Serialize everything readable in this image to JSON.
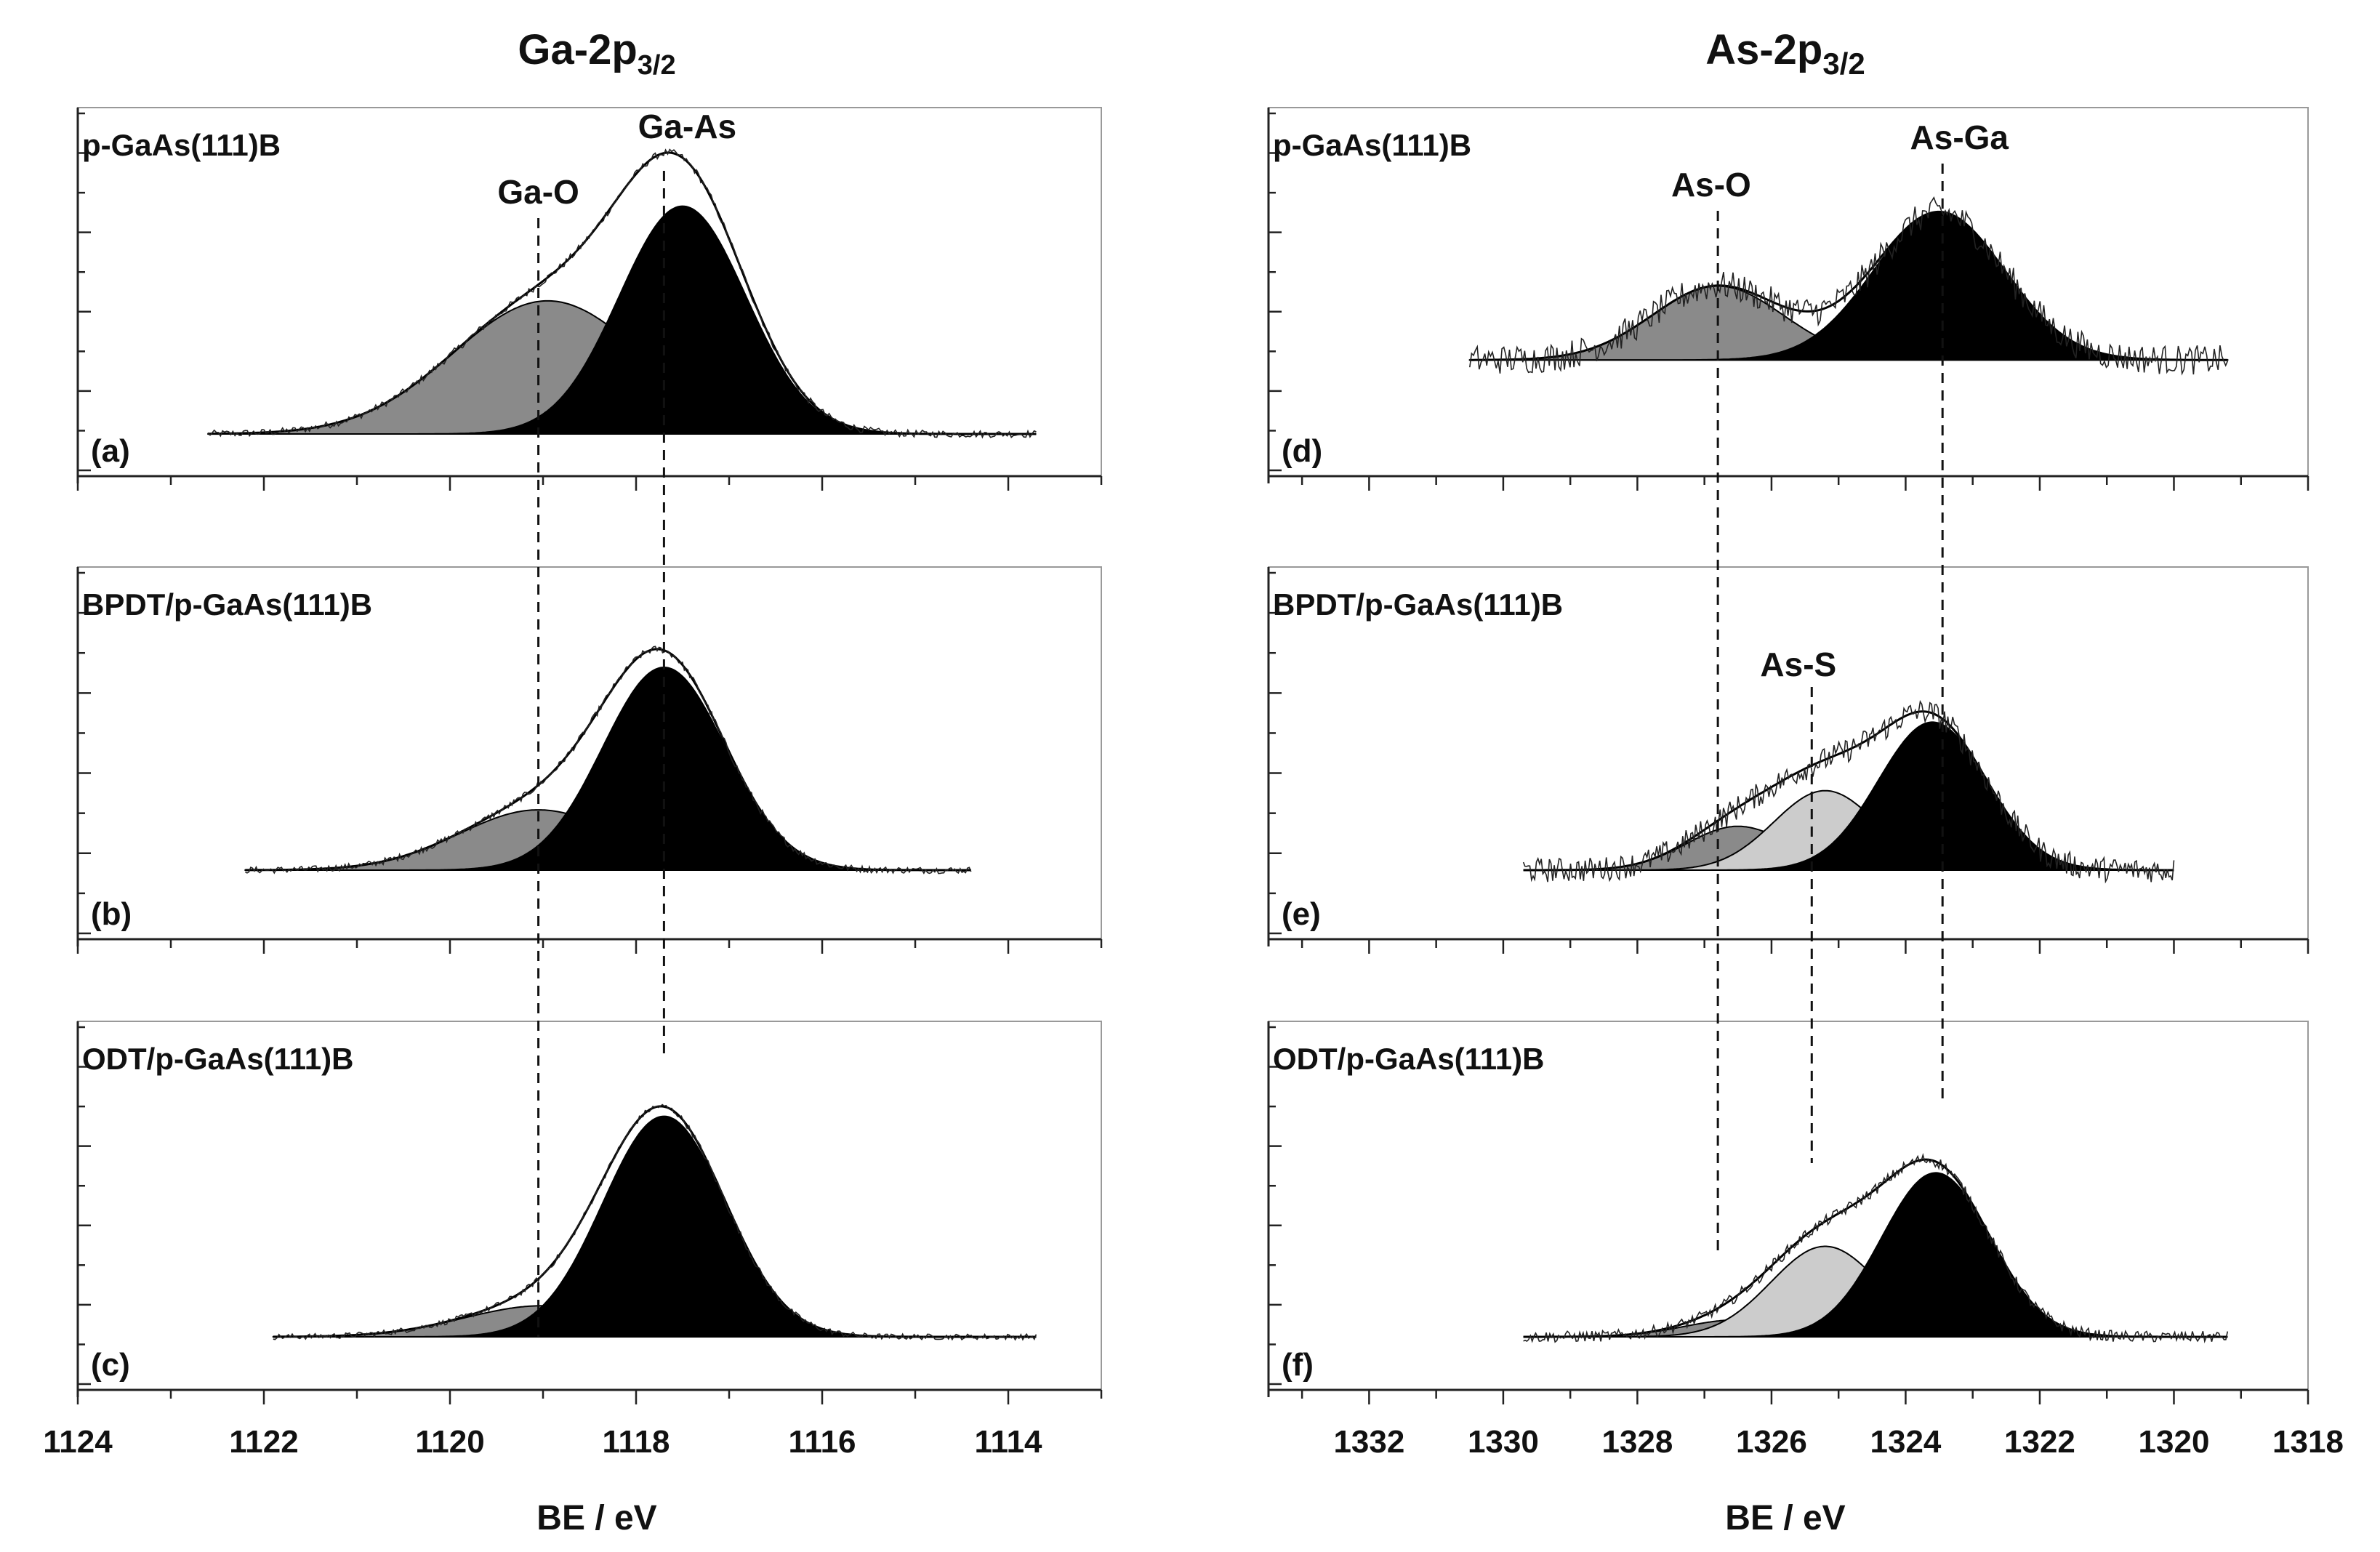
{
  "figure": {
    "left_column": {
      "title": {
        "main": "Ga-2p",
        "sub": "3/2"
      },
      "xlabel": "BE / eV",
      "xlim": [
        1124,
        1113
      ],
      "xticks": [
        1124,
        1122,
        1120,
        1118,
        1116,
        1114
      ]
    },
    "right_column": {
      "title": {
        "main": "As-2p",
        "sub": "3/2"
      },
      "xlabel": "BE / eV",
      "xlim": [
        1333.5,
        1318
      ],
      "xticks": [
        1332,
        1330,
        1328,
        1326,
        1324,
        1322,
        1320,
        1318
      ]
    },
    "reference_lines": {
      "ga_o": 1119.05,
      "ga_as": 1117.7,
      "as_o": 1326.8,
      "as_s": 1325.4,
      "as_ga": 1323.45
    }
  },
  "chart_data": [
    {
      "type": "area",
      "panel": "(a)",
      "sample": "p-GaAs(111)B",
      "xlabel": "BE / eV",
      "xlim": [
        1124,
        1113
      ],
      "x_range": [
        1122.6,
        1113.7
      ],
      "baseline": 0,
      "noise": 0.012,
      "peaks": [
        {
          "label": "Ga-O",
          "center": 1118.95,
          "amplitude": 0.45,
          "fwhm": 2.4,
          "fill": "#8a8a8a"
        },
        {
          "label": "Ga-As",
          "center": 1117.5,
          "amplitude": 0.77,
          "fwhm": 1.6,
          "fill": "#000000"
        }
      ],
      "annotations": [
        {
          "text": "Ga-O",
          "x": 1119.05
        },
        {
          "text": "Ga-As",
          "x": 1117.45
        }
      ]
    },
    {
      "type": "area",
      "panel": "(b)",
      "sample": "BPDT/p-GaAs(111)B",
      "xlabel": "BE / eV",
      "xlim": [
        1124,
        1113
      ],
      "x_range": [
        1122.2,
        1114.4
      ],
      "baseline": 0,
      "noise": 0.012,
      "peaks": [
        {
          "label": "Ga-O",
          "center": 1119.05,
          "amplitude": 0.22,
          "fwhm": 2.0,
          "fill": "#8a8a8a"
        },
        {
          "label": "Ga-As",
          "center": 1117.7,
          "amplitude": 0.74,
          "fwhm": 1.55,
          "fill": "#000000"
        }
      ],
      "annotations": []
    },
    {
      "type": "area",
      "panel": "(c)",
      "sample": "ODT/p-GaAs(111)B",
      "xlabel": "BE / eV",
      "xlim": [
        1124,
        1113
      ],
      "x_range": [
        1121.9,
        1113.7
      ],
      "baseline": 0,
      "noise": 0.01,
      "peaks": [
        {
          "label": "Ga-O",
          "center": 1119.0,
          "amplitude": 0.11,
          "fwhm": 2.0,
          "fill": "#8a8a8a"
        },
        {
          "label": "Ga-As",
          "center": 1117.7,
          "amplitude": 0.78,
          "fwhm": 1.55,
          "fill": "#000000"
        }
      ],
      "annotations": []
    },
    {
      "type": "area",
      "panel": "(d)",
      "sample": "p-GaAs(111)B",
      "xlabel": "BE / eV",
      "xlim": [
        1333.5,
        1318
      ],
      "x_range": [
        1330.5,
        1319.2
      ],
      "baseline": 0.25,
      "noise": 0.05,
      "peaks": [
        {
          "label": "As-O",
          "center": 1326.8,
          "amplitude": 0.25,
          "fwhm": 2.3,
          "fill": "#8a8a8a"
        },
        {
          "label": "As-Ga",
          "center": 1323.5,
          "amplitude": 0.5,
          "fwhm": 2.3,
          "fill": "#000000"
        }
      ],
      "annotations": [
        {
          "text": "As-O",
          "x": 1326.9
        },
        {
          "text": "As-Ga",
          "x": 1323.2
        }
      ]
    },
    {
      "type": "area",
      "panel": "(e)",
      "sample": "BPDT/p-GaAs(111)B",
      "xlabel": "BE / eV",
      "xlim": [
        1333.5,
        1318
      ],
      "x_range": [
        1329.7,
        1320.0
      ],
      "baseline": 0,
      "noise": 0.045,
      "peaks": [
        {
          "label": "As-O",
          "center": 1326.5,
          "amplitude": 0.16,
          "fwhm": 1.8,
          "fill": "#8a8a8a"
        },
        {
          "label": "As-S",
          "center": 1325.2,
          "amplitude": 0.29,
          "fwhm": 1.8,
          "fill": "#cccccc"
        },
        {
          "label": "As-Ga",
          "center": 1323.6,
          "amplitude": 0.54,
          "fwhm": 1.9,
          "fill": "#000000"
        }
      ],
      "annotations": [
        {
          "text": "As-S",
          "x": 1325.6
        }
      ]
    },
    {
      "type": "area",
      "panel": "(f)",
      "sample": "ODT/p-GaAs(111)B",
      "xlabel": "BE / eV",
      "xlim": [
        1333.5,
        1318
      ],
      "x_range": [
        1329.7,
        1319.2
      ],
      "baseline": 0,
      "noise": 0.02,
      "peaks": [
        {
          "label": "As-O",
          "center": 1326.5,
          "amplitude": 0.06,
          "fwhm": 1.9,
          "fill": "#8a8a8a"
        },
        {
          "label": "As-S",
          "center": 1325.2,
          "amplitude": 0.32,
          "fwhm": 1.9,
          "fill": "#cccccc"
        },
        {
          "label": "As-Ga",
          "center": 1323.55,
          "amplitude": 0.58,
          "fwhm": 1.9,
          "fill": "#000000"
        }
      ],
      "annotations": []
    }
  ]
}
